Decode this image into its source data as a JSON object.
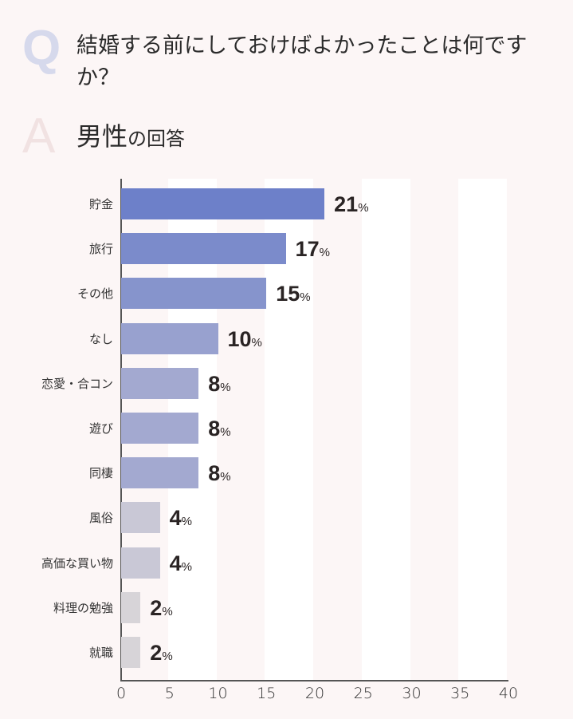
{
  "header": {
    "q_letter": "Q",
    "question": "結婚する前にしておけばよかったことは何ですか？",
    "a_letter": "A",
    "answer_main": "男性",
    "answer_sub": "の回答"
  },
  "chart_data": {
    "type": "bar",
    "orientation": "horizontal",
    "title": "結婚する前にしておけばよかったことは何ですか？ 男性の回答",
    "categories": [
      "貯金",
      "旅行",
      "その他",
      "なし",
      "恋愛・合コン",
      "遊び",
      "同棲",
      "風俗",
      "高価な買い物",
      "料理の勉強",
      "就職"
    ],
    "values": [
      21,
      17,
      15,
      10,
      8,
      8,
      8,
      4,
      4,
      2,
      2
    ],
    "value_suffix": "%",
    "xlabel": "",
    "ylabel": "",
    "xlim": [
      0,
      40
    ],
    "xticks": [
      "0",
      "5",
      "10",
      "15",
      "20",
      "25",
      "30",
      "35",
      "40"
    ],
    "grid": "alternating vertical stripes",
    "bar_colors": [
      "#6d80c9",
      "#7b8bcb",
      "#8694cc",
      "#98a1cf",
      "#a3a9d0",
      "#a3a9d0",
      "#a3a9d0",
      "#c9c8d6",
      "#c9c8d6",
      "#d7d4d8",
      "#d7d4d8"
    ]
  }
}
